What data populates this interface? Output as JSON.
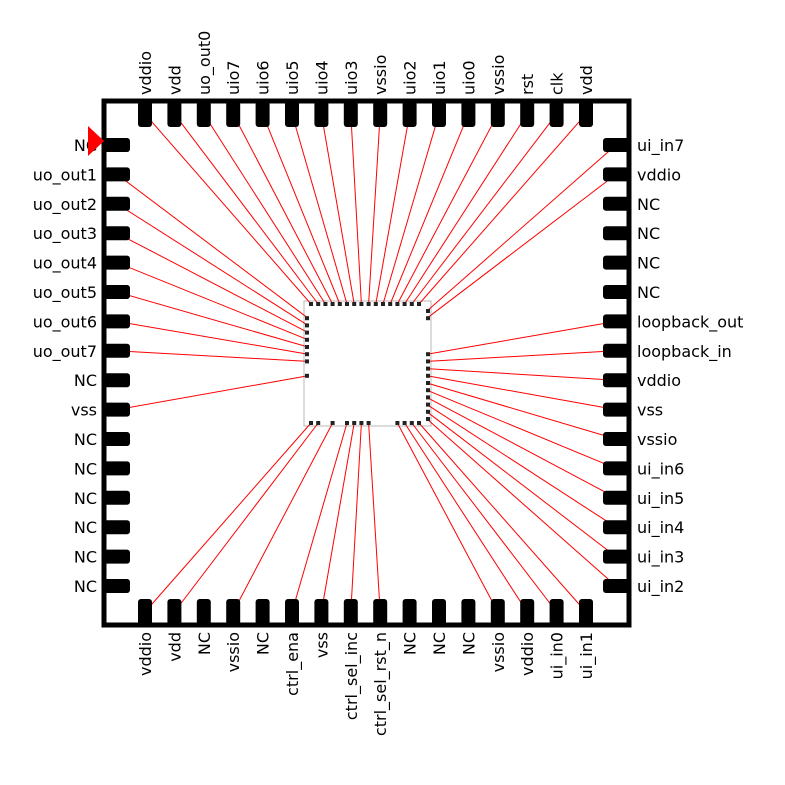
{
  "colors": {
    "package_outline": "#000000",
    "pad": "#000000",
    "bond_wire": "#ff0000",
    "pin1_marker": "#ff0000",
    "die_fill": "#ffffff",
    "die_border": "#b8b8b8",
    "die_pad": "#222222",
    "background": "#ffffff"
  },
  "pin1_marker_icon": "pin1-triangle-marker",
  "pins": {
    "left": [
      "NC",
      "uo_out1",
      "uo_out2",
      "uo_out3",
      "uo_out4",
      "uo_out5",
      "uo_out6",
      "uo_out7",
      "NC",
      "vss",
      "NC",
      "NC",
      "NC",
      "NC",
      "NC",
      "NC"
    ],
    "top": [
      "vddio",
      "vdd",
      "uo_out0",
      "uio7",
      "uio6",
      "uio5",
      "uio4",
      "uio3",
      "vssio",
      "uio2",
      "uio1",
      "uio0",
      "vssio",
      "rst",
      "clk",
      "vdd"
    ],
    "right": [
      "ui_in7",
      "vddio",
      "NC",
      "NC",
      "NC",
      "NC",
      "loopback_out",
      "loopback_in",
      "vddio",
      "vss",
      "vssio",
      "ui_in6",
      "ui_in5",
      "ui_in4",
      "ui_in3",
      "ui_in2"
    ],
    "bottom": [
      "vddio",
      "vdd",
      "NC",
      "vssio",
      "NC",
      "ctrl_ena",
      "vss",
      "ctrl_sel_inc",
      "ctrl_sel_rst_n",
      "NC",
      "NC",
      "NC",
      "vssio",
      "vddio",
      "ui_in0",
      "ui_in1"
    ]
  }
}
